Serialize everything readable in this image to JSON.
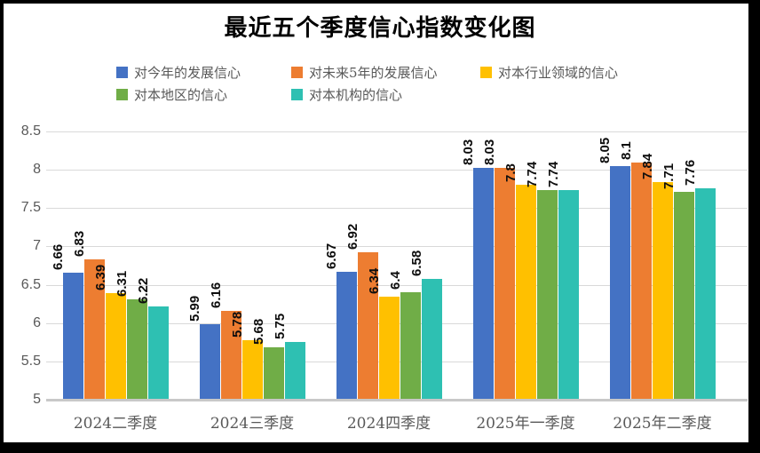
{
  "title": "最近五个季度信心指数变化图",
  "chart_data": {
    "type": "bar",
    "title": "最近五个季度信心指数变化图",
    "categories": [
      "2024二季度",
      "2024三季度",
      "2024四季度",
      "2025年一季度",
      "2025年二季度"
    ],
    "series": [
      {
        "name": "对今年的发展信心",
        "color": "#4472C4",
        "values": [
          6.66,
          5.99,
          6.67,
          8.03,
          8.05
        ]
      },
      {
        "name": "对未来5年的发展信心",
        "color": "#ED7D31",
        "values": [
          6.83,
          6.16,
          6.92,
          8.03,
          8.1
        ]
      },
      {
        "name": "对本行业领域的信心",
        "color": "#FFC000",
        "values": [
          6.39,
          5.78,
          6.34,
          7.8,
          7.84
        ]
      },
      {
        "name": "对本地区的信心",
        "color": "#70AD47",
        "values": [
          6.31,
          5.68,
          6.4,
          7.74,
          7.71
        ]
      },
      {
        "name": "对本机构的信心",
        "color": "#2EC0B2",
        "values": [
          6.22,
          5.75,
          6.58,
          7.74,
          7.76
        ]
      }
    ],
    "xlabel": "",
    "ylabel": "",
    "y_ticks": [
      5,
      5.5,
      6,
      6.5,
      7,
      7.5,
      8,
      8.5
    ],
    "ylim": [
      5,
      8.5
    ],
    "grid": true,
    "legend_position": "top",
    "data_labels": true,
    "data_label_rotation": 90,
    "colors": {
      "grid": "#d9d9d9",
      "axis": "#c8c8c8",
      "tick_text": "#595959",
      "label_text": "#0d0d0d",
      "background": "#ffffff",
      "frame": "#000000"
    }
  }
}
